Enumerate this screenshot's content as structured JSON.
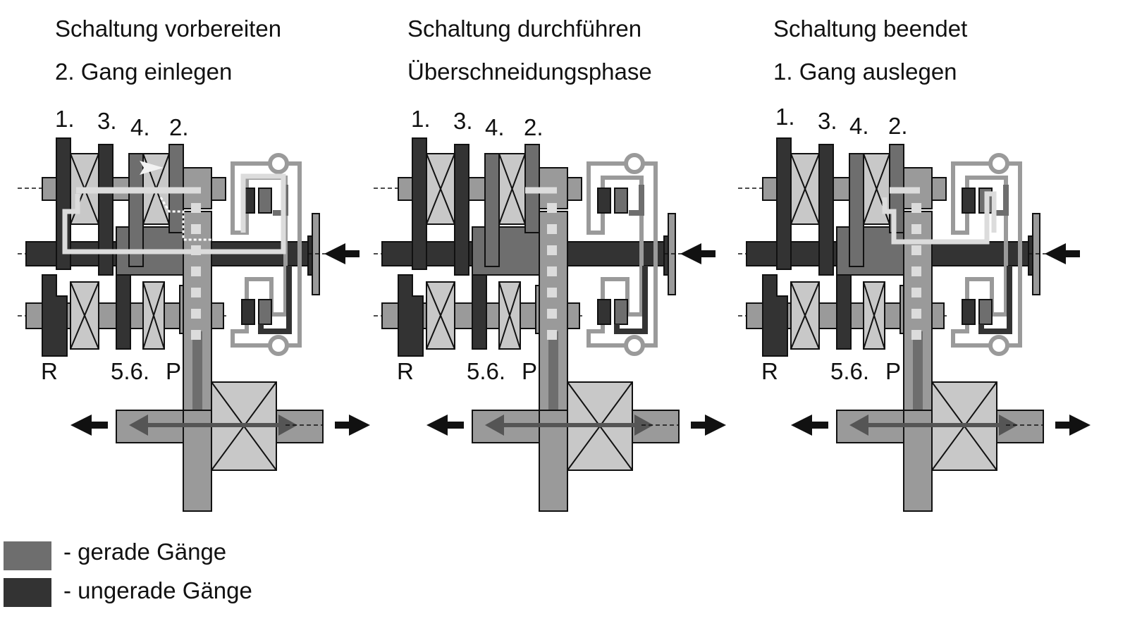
{
  "panels": [
    {
      "title1": "Schaltung vorbereiten",
      "title2": "2. Gang einlegen",
      "gears_top": [
        "1.",
        "3.",
        "4.",
        "2."
      ],
      "gears_bottom": [
        "R",
        "5.6.",
        "P"
      ]
    },
    {
      "title1": "Schaltung durchführen",
      "title2": "Überschneidungsphase",
      "gears_top": [
        "1.",
        "3.",
        "4.",
        "2."
      ],
      "gears_bottom": [
        "R",
        "5.6.",
        "P"
      ]
    },
    {
      "title1": "Schaltung beendet",
      "title2": "1. Gang auslegen",
      "gears_top": [
        "1.",
        "3.",
        "4.",
        "2."
      ],
      "gears_bottom": [
        "R",
        "5.6.",
        "P"
      ]
    }
  ],
  "legend": {
    "even": {
      "label": "- gerade Gänge",
      "color": "#6e6e6e"
    },
    "odd": {
      "label": "- ungerade Gänge",
      "color": "#333333"
    }
  },
  "colors": {
    "dark": "#333333",
    "mid": "#6e6e6e",
    "light": "#9a9a9a",
    "pale": "#c8c8c8",
    "flow": "#dcdcdc"
  }
}
